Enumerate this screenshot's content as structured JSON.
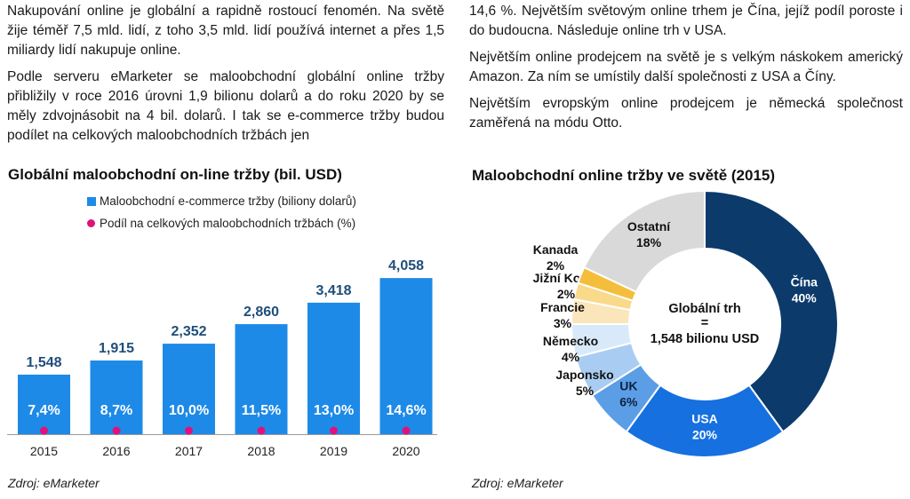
{
  "text": {
    "left_paragraphs": [
      "Nakupování online je globální a rapidně rostoucí fenomén. Na světě žije téměř 7,5 mld. lidí, z toho 3,5 mld. lidí používá internet a přes 1,5 miliardy lidí nakupuje online.",
      "Podle serveru eMarketer se maloobchodní globální online tržby přibližily v roce 2016 úrovni 1,9 bilionu dolarů a do roku 2020 by se měly zdvojnásobit na 4 bil. dolarů. I tak se e-commerce tržby budou podílet na celkových maloobchodních tržbách jen"
    ],
    "right_paragraphs": [
      "14,6 %. Největším světovým online trhem je Čína, jejíž podíl poroste i do budoucna. Následuje online trh v USA.",
      "Největším online prodejcem na světě je s velkým náskokem americký Amazon. Za ním se umístily další společnosti z USA a Číny.",
      "Největším evropským online prodejcem je německá společnost zaměřená na módu Otto."
    ]
  },
  "chart_data": [
    {
      "type": "bar",
      "title": "Globální maloobchodní on-line tržby (bil. USD)",
      "categories": [
        "2015",
        "2016",
        "2017",
        "2018",
        "2019",
        "2020"
      ],
      "series": [
        {
          "name": "Maloobchodní e-commerce tržby (biliony dolarů)",
          "values": [
            1.548,
            1.915,
            2.352,
            2.86,
            3.418,
            4.058
          ],
          "labels": [
            "1,548",
            "1,915",
            "2,352",
            "2,860",
            "3,418",
            "4,058"
          ],
          "color": "#1e8ae8"
        },
        {
          "name": "Podíl na celkových maloobchodních tržbách (%)",
          "values": [
            7.4,
            8.7,
            10.0,
            11.5,
            13.0,
            14.6
          ],
          "labels": [
            "7,4%",
            "8,7%",
            "10,0%",
            "11,5%",
            "13,0%",
            "14,6%"
          ],
          "color": "#e0127a"
        }
      ],
      "ylim": [
        0,
        4.5
      ],
      "grid": false,
      "legend": "top",
      "source": "Zdroj: eMarketer"
    },
    {
      "type": "pie",
      "title": "Maloobchodní online tržby ve světě (2015)",
      "center_label": [
        "Globální trh",
        "=",
        "1,548 bilionu USD"
      ],
      "slices": [
        {
          "name": "Čína",
          "value": 40,
          "label": "40%",
          "color": "#0c3a6b",
          "text_color": "#ffffff"
        },
        {
          "name": "USA",
          "value": 20,
          "label": "20%",
          "color": "#1670e0",
          "text_color": "#ffffff"
        },
        {
          "name": "UK",
          "value": 6,
          "label": "6%",
          "color": "#5b9ee6",
          "text_color": "#0c2340"
        },
        {
          "name": "Japonsko",
          "value": 5,
          "label": "5%",
          "color": "#a9cdf2",
          "text_color": "#111111"
        },
        {
          "name": "Německo",
          "value": 4,
          "label": "4%",
          "color": "#d8e9fa",
          "text_color": "#111111"
        },
        {
          "name": "Francie",
          "value": 3,
          "label": "3%",
          "color": "#fbe6bb",
          "text_color": "#111111"
        },
        {
          "name": "Jižní Korea",
          "value": 2,
          "label": "2%",
          "color": "#f9d98a",
          "text_color": "#111111"
        },
        {
          "name": "Kanada",
          "value": 2,
          "label": "2%",
          "color": "#f4be3c",
          "text_color": "#111111"
        },
        {
          "name": "Ostatní",
          "value": 18,
          "label": "18%",
          "color": "#d9d9d9",
          "text_color": "#111111"
        }
      ],
      "source": "Zdroj: eMarketer"
    }
  ]
}
